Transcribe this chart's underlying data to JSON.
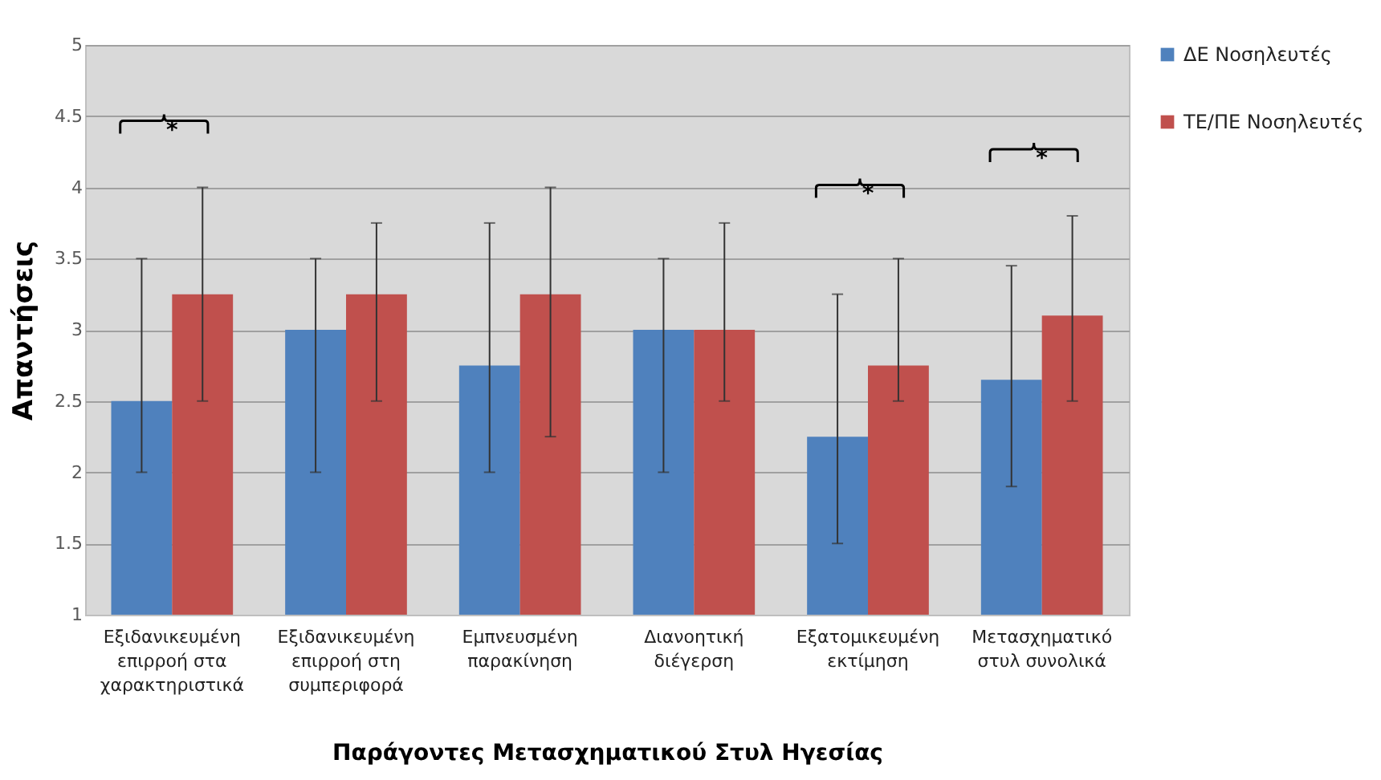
{
  "chart_data": {
    "type": "bar",
    "xlabel": "Παράγοντες Μετασχηματικού Στυλ Ηγεσίας",
    "ylabel": "Απαντήσεις",
    "categories": [
      "Εξιδανικευμένη επιρροή στα χαρακτηριστικά",
      "Εξιδανικευμένη επιρροή στη συμπεριφορά",
      "Εμπνευσμένη παρακίνηση",
      "Διανοητική διέγερση",
      "Εξατομικευμένη εκτίμηση",
      "Μετασχηματικό στυλ συνολικά"
    ],
    "series": [
      {
        "name": "ΔΕ Νοσηλευτές",
        "color": "#4f81bd",
        "values": [
          2.5,
          3,
          2.75,
          3,
          2.25,
          2.65
        ],
        "errors": [
          [
            2,
            3.5
          ],
          [
            2,
            3.5
          ],
          [
            2,
            3.75
          ],
          [
            2,
            3.5
          ],
          [
            1.5,
            3.25
          ],
          [
            1.9,
            3.45
          ]
        ]
      },
      {
        "name": "ΤΕ/ΠΕ Νοσηλευτές",
        "color": "#c0504d",
        "values": [
          3.25,
          3.25,
          3.25,
          3,
          2.75,
          3.1
        ],
        "errors": [
          [
            2.5,
            4
          ],
          [
            2.5,
            3.75
          ],
          [
            2.25,
            4
          ],
          [
            2.5,
            3.75
          ],
          [
            2.5,
            3.5
          ],
          [
            2.5,
            3.8
          ]
        ]
      }
    ],
    "ylim": [
      1,
      5
    ],
    "yticks": [
      1,
      1.5,
      2,
      2.5,
      3,
      3.5,
      4,
      4.5,
      5
    ],
    "grid": "y",
    "legend": "right",
    "annotations": [
      "*",
      "*",
      "*"
    ]
  }
}
